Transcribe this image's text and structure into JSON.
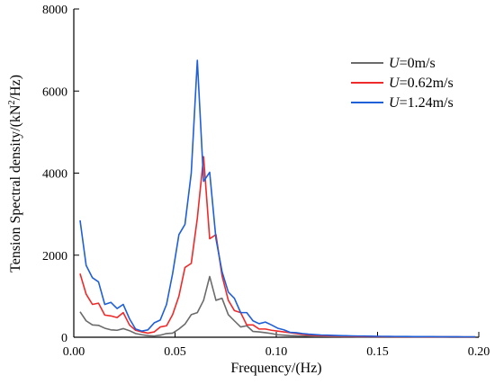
{
  "chart_data": {
    "type": "line",
    "title": "",
    "xlabel": "Frequency/(Hz)",
    "ylabel_prefix": "Tension Spectral density/(kN",
    "ylabel_sup": "2",
    "ylabel_suffix": "/Hz)",
    "xlim": [
      0,
      0.2
    ],
    "ylim": [
      0,
      8000
    ],
    "xticks": [
      0.0,
      0.05,
      0.1,
      0.15,
      0.2
    ],
    "xtick_labels": [
      "0.00",
      "0.05",
      "0.10",
      "0.15",
      "0.20"
    ],
    "yticks": [
      0,
      2000,
      4000,
      6000,
      8000
    ],
    "ytick_labels": [
      "0",
      "2000",
      "4000",
      "6000",
      "8000"
    ],
    "legend_position": "top-right",
    "series": [
      {
        "name_italic": "U",
        "name_rest": "=0m/s",
        "color": "#6b6b6b",
        "x": [
          0.0031,
          0.0061,
          0.0092,
          0.0122,
          0.0153,
          0.0183,
          0.0214,
          0.0244,
          0.0275,
          0.0305,
          0.0336,
          0.0366,
          0.0397,
          0.0427,
          0.0458,
          0.0488,
          0.0519,
          0.0549,
          0.058,
          0.061,
          0.0641,
          0.0671,
          0.0702,
          0.0732,
          0.0763,
          0.0793,
          0.0824,
          0.0854,
          0.0885,
          0.0915,
          0.0946,
          0.0976,
          0.1007,
          0.1037,
          0.1068,
          0.1098,
          0.1129,
          0.1159,
          0.119,
          0.122,
          0.1251,
          0.1281,
          0.1312,
          0.1342,
          0.1373,
          0.1403,
          0.1434,
          0.1464,
          0.1495,
          0.1525,
          0.1556,
          0.1586,
          0.1617,
          0.1647,
          0.1678,
          0.1708,
          0.1739,
          0.1769,
          0.18,
          0.183,
          0.1861,
          0.1891,
          0.1922,
          0.1952,
          0.1983
        ],
        "values": [
          620,
          400,
          300,
          290,
          220,
          180,
          170,
          210,
          160,
          90,
          60,
          40,
          30,
          50,
          90,
          100,
          200,
          320,
          550,
          600,
          900,
          1480,
          900,
          950,
          550,
          400,
          250,
          280,
          140,
          130,
          110,
          90,
          60,
          50,
          40,
          35,
          30,
          25,
          20,
          20,
          18,
          15,
          15,
          12,
          12,
          10,
          10,
          10,
          10,
          8,
          8,
          8,
          8,
          8,
          6,
          6,
          6,
          6,
          6,
          6,
          5,
          5,
          5,
          5,
          5
        ]
      },
      {
        "name_italic": "U",
        "name_rest": "=0.62m/s",
        "color": "#ee2a2a",
        "x": [
          0.0031,
          0.0061,
          0.0092,
          0.0122,
          0.0153,
          0.0183,
          0.0214,
          0.0244,
          0.0275,
          0.0305,
          0.0336,
          0.0366,
          0.0397,
          0.0427,
          0.0458,
          0.0488,
          0.0519,
          0.0549,
          0.058,
          0.061,
          0.0641,
          0.0671,
          0.0702,
          0.0732,
          0.0763,
          0.0793,
          0.0824,
          0.0854,
          0.0885,
          0.0915,
          0.0946,
          0.0976,
          0.1007,
          0.1037,
          0.1068,
          0.1098,
          0.1129,
          0.1159,
          0.119,
          0.122,
          0.1251,
          0.1281,
          0.1312,
          0.1342,
          0.1373,
          0.1403,
          0.1434,
          0.1464,
          0.1495,
          0.1525,
          0.1556,
          0.1586,
          0.1617,
          0.1647,
          0.1678,
          0.1708,
          0.1739,
          0.1769,
          0.18,
          0.183,
          0.1861,
          0.1891,
          0.1922,
          0.1952,
          0.1983
        ],
        "values": [
          1550,
          1050,
          800,
          830,
          540,
          520,
          480,
          600,
          300,
          170,
          130,
          100,
          130,
          250,
          280,
          550,
          1000,
          1700,
          1800,
          2900,
          4400,
          2400,
          2500,
          1500,
          900,
          650,
          600,
          300,
          300,
          200,
          200,
          170,
          150,
          130,
          110,
          90,
          70,
          55,
          45,
          40,
          35,
          30,
          28,
          25,
          22,
          20,
          18,
          17,
          16,
          15,
          14,
          13,
          12,
          12,
          11,
          11,
          10,
          10,
          10,
          9,
          9,
          9,
          8,
          8,
          8
        ]
      },
      {
        "name_italic": "U",
        "name_rest": "=1.24m/s",
        "color": "#1f5fd8",
        "x": [
          0.0031,
          0.0061,
          0.0092,
          0.0122,
          0.0153,
          0.0183,
          0.0214,
          0.0244,
          0.0275,
          0.0305,
          0.0336,
          0.0366,
          0.0397,
          0.0427,
          0.0458,
          0.0488,
          0.0519,
          0.0549,
          0.058,
          0.061,
          0.0641,
          0.0671,
          0.0702,
          0.0732,
          0.0763,
          0.0793,
          0.0824,
          0.0854,
          0.0885,
          0.0915,
          0.0946,
          0.0976,
          0.1007,
          0.1037,
          0.1068,
          0.1098,
          0.1129,
          0.1159,
          0.119,
          0.122,
          0.1251,
          0.1281,
          0.1312,
          0.1342,
          0.1373,
          0.1403,
          0.1434,
          0.1464,
          0.1495,
          0.1525,
          0.1556,
          0.1586,
          0.1617,
          0.1647,
          0.1678,
          0.1708,
          0.1739,
          0.1769,
          0.18,
          0.183,
          0.1861,
          0.1891,
          0.1922,
          0.1952,
          0.1983
        ],
        "values": [
          2850,
          1750,
          1450,
          1350,
          800,
          850,
          700,
          800,
          450,
          200,
          150,
          180,
          350,
          420,
          800,
          1550,
          2500,
          2750,
          4000,
          6750,
          3800,
          4020,
          2400,
          1600,
          1100,
          950,
          600,
          600,
          400,
          330,
          370,
          300,
          220,
          180,
          120,
          110,
          90,
          75,
          65,
          55,
          50,
          45,
          40,
          36,
          33,
          30,
          28,
          26,
          24,
          22,
          20,
          19,
          18,
          17,
          16,
          15,
          14,
          14,
          13,
          13,
          12,
          12,
          11,
          11,
          11
        ]
      }
    ]
  }
}
